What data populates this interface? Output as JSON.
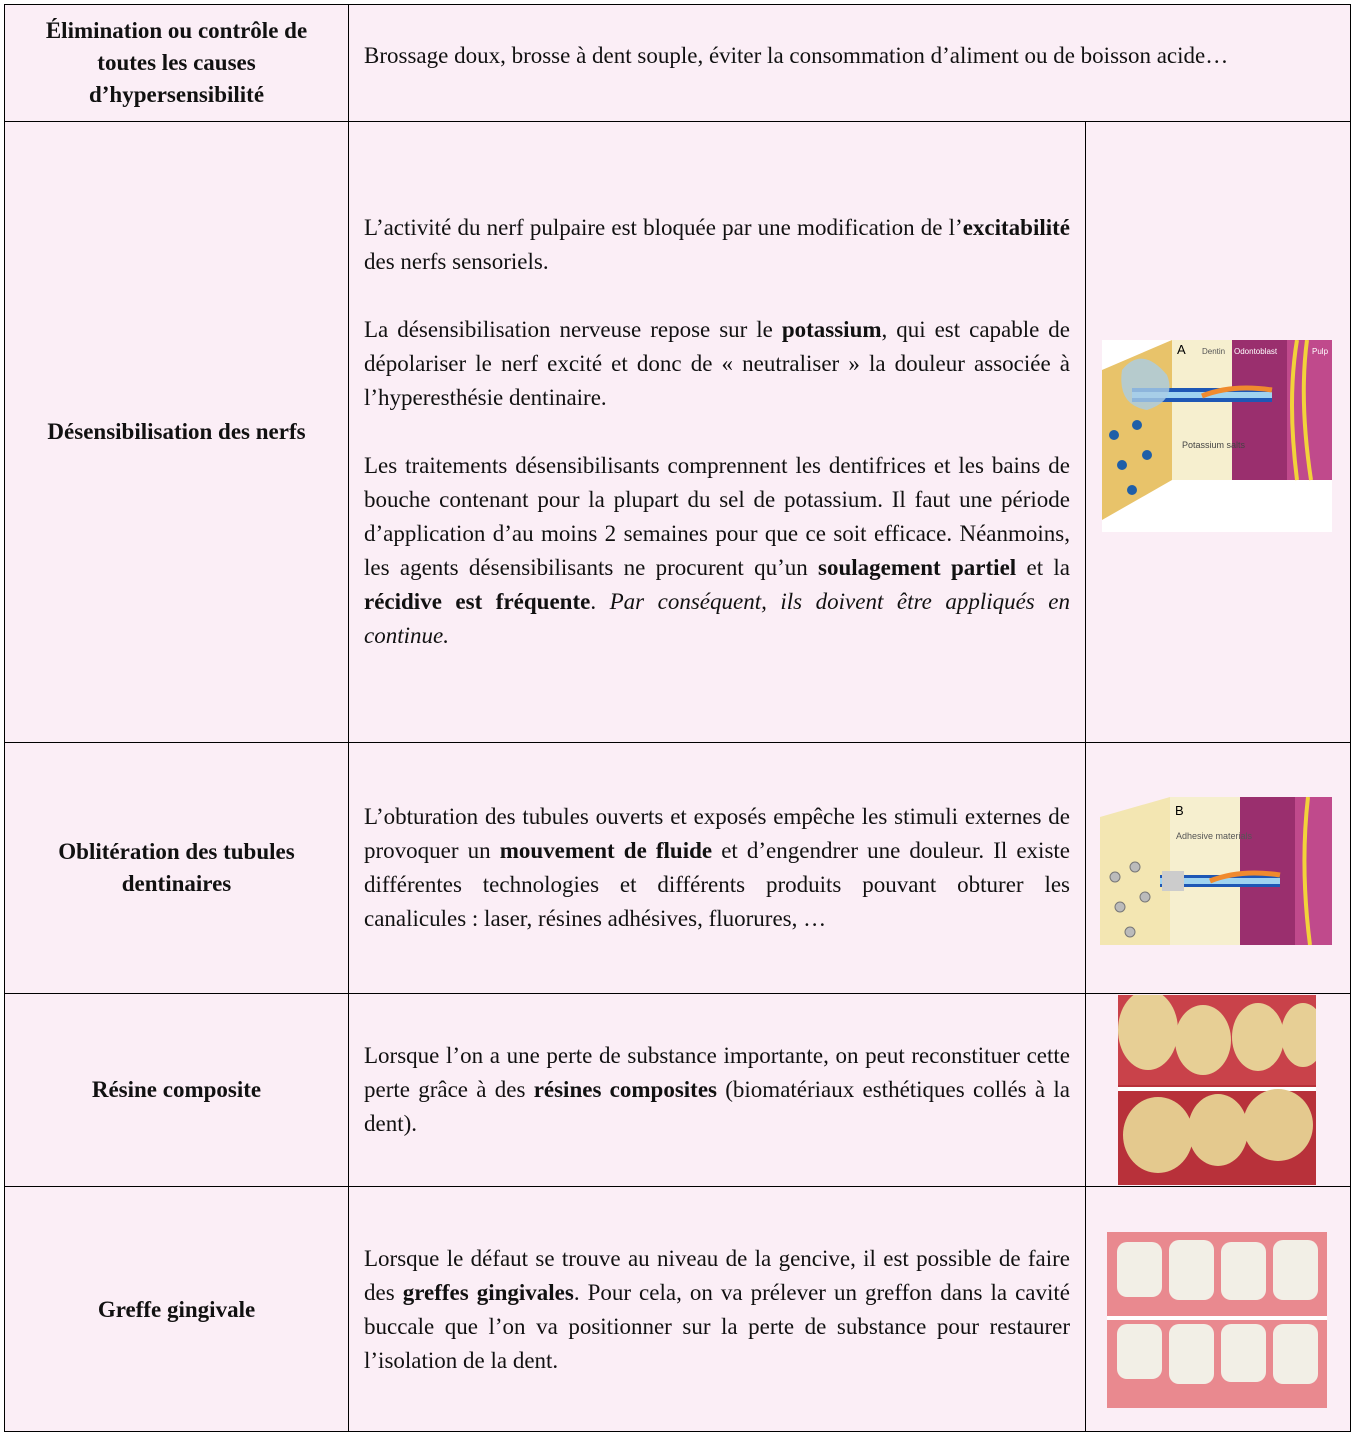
{
  "rows": [
    {
      "label": "Élimination ou contrôle de toutes les causes d’hypersensibilité",
      "paragraphs": [
        [
          {
            "text": "Brossage doux, brosse à dent souple, éviter la consommation d’aliment ou de boisson acide…"
          }
        ]
      ]
    },
    {
      "label": "Désensibilisation des nerfs",
      "paragraphs": [
        [
          {
            "text": "L’activité du nerf pulpaire est bloquée par une modification de l’"
          },
          {
            "text": "excitabilité",
            "bold": true
          },
          {
            "text": " des nerfs sensoriels."
          }
        ],
        [
          {
            "text": "La désensibilisation nerveuse repose sur le "
          },
          {
            "text": "potassium",
            "bold": true
          },
          {
            "text": ", qui est capable de dépolariser le nerf excité et donc de « neutraliser » la douleur associée à l’hyperesthésie dentinaire."
          }
        ],
        [
          {
            "text": "Les traitements désensibilisants comprennent les dentifrices et les bains de bouche contenant pour la plupart du sel de potassium. Il faut une période d’application d’au moins 2 semaines pour que ce soit efficace. Néanmoins, les agents désensibilisants ne procurent qu’un "
          },
          {
            "text": "soulagement partiel",
            "bold": true
          },
          {
            "text": " et la "
          },
          {
            "text": "récidive est fréquente",
            "bold": true
          },
          {
            "text": ". "
          },
          {
            "text": "Par conséquent, ils doivent être appliqués en continue.",
            "italic": true
          }
        ]
      ],
      "image": {
        "letter": "A",
        "labels": [
          "Dentin",
          "Odontoblast",
          "Pulp",
          "Potassium salts"
        ]
      }
    },
    {
      "label": "Oblitération des tubules dentinaires",
      "paragraphs": [
        [
          {
            "text": "L’obturation des tubules ouverts et exposés empêche les stimuli externes de provoquer un "
          },
          {
            "text": "mouvement de fluide",
            "bold": true
          },
          {
            "text": " et d’engendrer une douleur. Il existe différentes technologies et différents produits pouvant obturer les canalicules : laser, résines adhésives, fluorures, …"
          }
        ]
      ],
      "image": {
        "letter": "B",
        "labels": [
          "Adhesive materials"
        ]
      }
    },
    {
      "label": "Résine composite",
      "paragraphs": [
        [
          {
            "text": "Lorsque l’on a une perte de substance importante, on peut reconstituer cette perte grâce à des "
          },
          {
            "text": "résines composites",
            "bold": true
          },
          {
            "text": " (biomatériaux esthétiques collés à la dent)."
          }
        ]
      ]
    },
    {
      "label": "Greffe gingivale",
      "paragraphs": [
        [
          {
            "text": "Lorsque le défaut se trouve au niveau de la gencive, il est possible de faire des "
          },
          {
            "text": "greffes gingivales",
            "bold": true
          },
          {
            "text": ". Pour cela, on va prélever un greffon dans la cavité buccale que l’on va positionner sur la perte de substance pour restaurer l’isolation de la dent."
          }
        ]
      ]
    }
  ]
}
